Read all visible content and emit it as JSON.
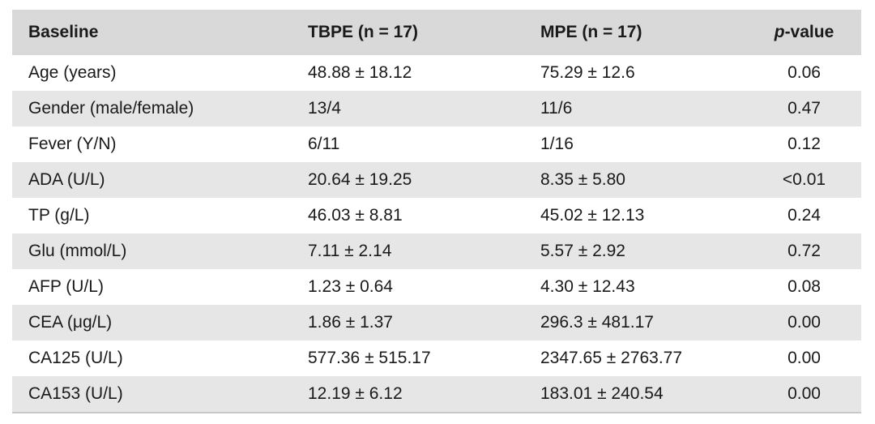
{
  "table": {
    "headers": {
      "baseline": "Baseline",
      "tbpe": "TBPE (n = 17)",
      "mpe": "MPE (n = 17)",
      "p_italic": "p",
      "p_suffix": "-value"
    },
    "rows": [
      {
        "baseline": "Age (years)",
        "tbpe": "48.88 ± 18.12",
        "mpe": "75.29 ± 12.6",
        "p": "0.06"
      },
      {
        "baseline": "Gender (male/female)",
        "tbpe": "13/4",
        "mpe": "11/6",
        "p": "0.47"
      },
      {
        "baseline": "Fever (Y/N)",
        "tbpe": "6/11",
        "mpe": "1/16",
        "p": "0.12"
      },
      {
        "baseline": "ADA (U/L)",
        "tbpe": "20.64 ± 19.25",
        "mpe": "8.35 ± 5.80",
        "p": "<0.01"
      },
      {
        "baseline": "TP (g/L)",
        "tbpe": "46.03 ± 8.81",
        "mpe": "45.02 ± 12.13",
        "p": "0.24"
      },
      {
        "baseline": "Glu (mmol/L)",
        "tbpe": "7.11 ± 2.14",
        "mpe": "5.57 ± 2.92",
        "p": "0.72"
      },
      {
        "baseline": "AFP (U/L)",
        "tbpe": "1.23 ± 0.64",
        "mpe": "4.30 ± 12.43",
        "p": "0.08"
      },
      {
        "baseline": "CEA (μg/L)",
        "tbpe": "1.86 ± 1.37",
        "mpe": "296.3 ± 481.17",
        "p": "0.00"
      },
      {
        "baseline": "CA125 (U/L)",
        "tbpe": "577.36 ± 515.17",
        "mpe": "2347.65 ± 2763.77",
        "p": "0.00"
      },
      {
        "baseline": "CA153 (U/L)",
        "tbpe": "12.19 ± 6.12",
        "mpe": "183.01 ± 240.54",
        "p": "0.00"
      }
    ]
  }
}
